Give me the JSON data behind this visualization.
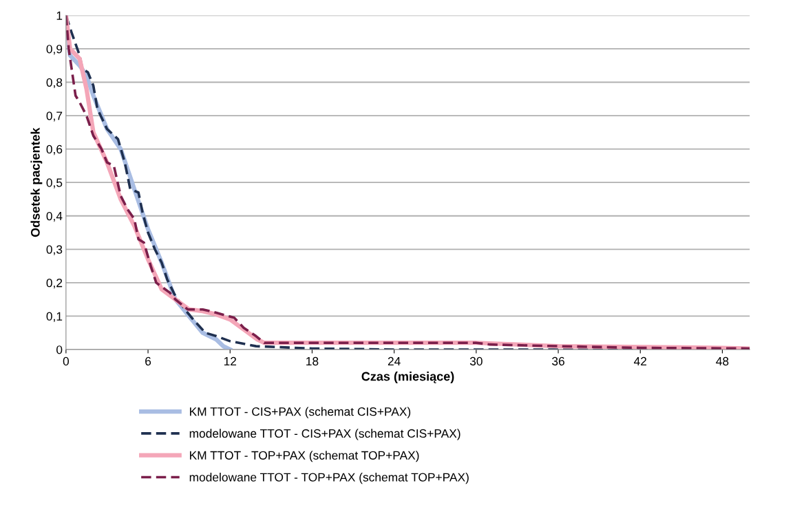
{
  "chart_data": {
    "type": "line",
    "xlabel": "Czas (miesiące)",
    "ylabel": "Odsetek pacjentek",
    "xlim": [
      0,
      50
    ],
    "xticks": [
      0,
      6,
      12,
      18,
      24,
      30,
      36,
      42,
      48
    ],
    "ylim": [
      0,
      1
    ],
    "yticks": [
      0,
      {
        "value": 0.1,
        "label": "0,1"
      },
      {
        "value": 0.2,
        "label": "0,2"
      },
      {
        "value": 0.3,
        "label": "0,3"
      },
      {
        "value": 0.4,
        "label": "0,4"
      },
      {
        "value": 0.5,
        "label": "0,5"
      },
      {
        "value": 0.6,
        "label": "0,6"
      },
      {
        "value": 0.7,
        "label": "0,7"
      },
      {
        "value": 0.8,
        "label": "0,8"
      },
      {
        "value": 0.9,
        "label": "0,9"
      },
      1
    ],
    "grid": "y",
    "legend": "bottom",
    "series": [
      {
        "name": "KM TTOT - CIS+PAX (schemat CIS+PAX)",
        "color": "#a9bde3",
        "line_style": "solid",
        "x": [
          0,
          0.3,
          1,
          1.5,
          2,
          3,
          4,
          5,
          6,
          7,
          8,
          9,
          10,
          11,
          11.5,
          12
        ],
        "values": [
          1,
          0.88,
          0.85,
          0.82,
          0.76,
          0.66,
          0.6,
          0.48,
          0.36,
          0.26,
          0.15,
          0.1,
          0.05,
          0.03,
          0.01,
          0
        ]
      },
      {
        "name": "modelowane TTOT - CIS+PAX (schemat CIS+PAX)",
        "color": "#1f3050",
        "line_style": "dashed",
        "x": [
          0,
          0.4,
          1,
          1.2,
          1.6,
          2,
          2.3,
          3,
          3.8,
          4.3,
          4.7,
          5.3,
          5.6,
          6,
          6.5,
          7,
          7.4,
          8,
          8.7,
          9.3,
          10.2,
          11,
          12,
          13.9,
          18,
          24,
          30,
          36,
          42,
          50
        ],
        "values": [
          1,
          0.95,
          0.88,
          0.84,
          0.83,
          0.79,
          0.72,
          0.66,
          0.63,
          0.56,
          0.48,
          0.47,
          0.41,
          0.35,
          0.3,
          0.26,
          0.21,
          0.16,
          0.12,
          0.09,
          0.05,
          0.04,
          0.025,
          0.01,
          0.003,
          0,
          0,
          0,
          0,
          0
        ]
      },
      {
        "name": "KM TTOT - TOP+PAX (schemat TOP+PAX)",
        "color": "#f4a6b8",
        "line_style": "solid",
        "x": [
          0,
          0.3,
          1,
          1.5,
          2,
          3,
          4,
          5,
          6,
          7,
          8,
          9,
          10,
          11,
          12,
          13,
          14,
          14.5,
          30,
          36,
          48,
          50
        ],
        "values": [
          1,
          0.9,
          0.87,
          0.78,
          0.65,
          0.56,
          0.45,
          0.37,
          0.27,
          0.18,
          0.15,
          0.12,
          0.115,
          0.105,
          0.09,
          0.06,
          0.03,
          0.02,
          0.02,
          0.01,
          0.005,
          0.003
        ]
      },
      {
        "name": "modelowane TTOT - TOP+PAX (schemat TOP+PAX)",
        "color": "#7b1f4b",
        "line_style": "dashed",
        "x": [
          0,
          0.2,
          0.7,
          1,
          1.5,
          2,
          2.6,
          3,
          3.5,
          4,
          4.5,
          5,
          5.3,
          5.7,
          6.2,
          6.6,
          7.6,
          8,
          8.9,
          10,
          11,
          12.3,
          13,
          13.9,
          14.5,
          30,
          31,
          36,
          42,
          50
        ],
        "values": [
          1,
          0.9,
          0.76,
          0.74,
          0.7,
          0.64,
          0.6,
          0.56,
          0.55,
          0.46,
          0.42,
          0.39,
          0.33,
          0.32,
          0.25,
          0.2,
          0.17,
          0.15,
          0.12,
          0.12,
          0.11,
          0.095,
          0.065,
          0.04,
          0.02,
          0.02,
          0.015,
          0.01,
          0.005,
          0.003
        ]
      }
    ]
  }
}
